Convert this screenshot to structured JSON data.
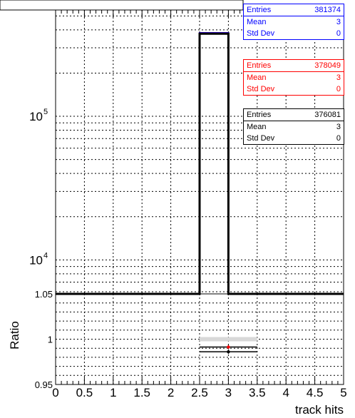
{
  "chart_data": {
    "type": "histogram",
    "xlabel": "track hits",
    "upper": {
      "yscale": "log",
      "ylim": [
        5800,
        550000
      ],
      "ytick_labels": [
        {
          "base": "10",
          "exp": "5",
          "value": 100000
        },
        {
          "base": "10",
          "exp": "4",
          "value": 10000
        }
      ],
      "bins": [
        0,
        0.5,
        1,
        1.5,
        2,
        2.5,
        3,
        3.5,
        4,
        4.5,
        5
      ],
      "series": [
        {
          "color": "#0000ff",
          "values": [
            0,
            0,
            0,
            0,
            0,
            381374,
            0,
            0,
            0,
            0
          ]
        },
        {
          "color": "#ff0000",
          "values": [
            0,
            0,
            0,
            0,
            0,
            378049,
            0,
            0,
            0,
            0
          ]
        },
        {
          "color": "#000000",
          "values": [
            0,
            0,
            0,
            0,
            0,
            376081,
            0,
            0,
            0,
            0
          ]
        }
      ]
    },
    "lower": {
      "ylabel": "Ratio",
      "ylim": [
        0.95,
        1.05
      ],
      "ytick_labels": [
        "1.05",
        "1",
        "0.95"
      ],
      "ratio_points": [
        {
          "x": 3,
          "y": 0.9913,
          "color": "#ff0000"
        },
        {
          "x": 3,
          "y": 0.9861,
          "color": "#000000"
        }
      ],
      "ratio_bands": [
        {
          "x0": 2.5,
          "x1": 3.5,
          "y": 1.0,
          "color": "#d8d8d8"
        }
      ]
    },
    "xtick_labels": [
      "0",
      "0.5",
      "1",
      "1.5",
      "2",
      "2.5",
      "3",
      "3.5",
      "4",
      "4.5",
      "5"
    ]
  },
  "stats": [
    {
      "color": "#0000ff",
      "rows": [
        {
          "label": "Entries",
          "value": "381374"
        },
        {
          "label": "Mean",
          "value": "3"
        },
        {
          "label": "Std Dev",
          "value": "0"
        }
      ]
    },
    {
      "color": "#ff0000",
      "rows": [
        {
          "label": "Entries",
          "value": "378049"
        },
        {
          "label": "Mean",
          "value": "3"
        },
        {
          "label": "Std Dev",
          "value": "0"
        }
      ]
    },
    {
      "color": "#000000",
      "rows": [
        {
          "label": "Entries",
          "value": "376081"
        },
        {
          "label": "Mean",
          "value": "3"
        },
        {
          "label": "Std Dev",
          "value": "0"
        }
      ]
    }
  ]
}
